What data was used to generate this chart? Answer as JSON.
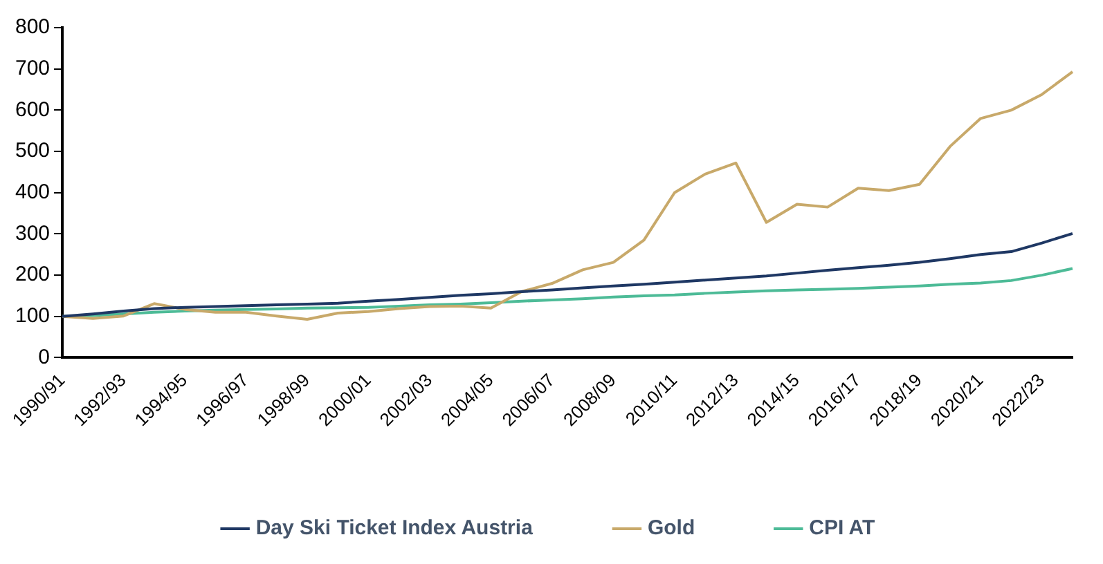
{
  "chart_data": {
    "type": "line",
    "categories": [
      "1990/91",
      null,
      "1992/93",
      null,
      "1994/95",
      null,
      "1996/97",
      null,
      "1998/99",
      null,
      "2000/01",
      null,
      "2002/03",
      null,
      "2004/05",
      null,
      "2006/07",
      null,
      "2008/09",
      null,
      "2010/11",
      null,
      "2012/13",
      null,
      "2014/15",
      null,
      "2016/17",
      null,
      "2018/19",
      null,
      "2020/21",
      null,
      "2022/23",
      null
    ],
    "series": [
      {
        "name": "Day Ski Ticket Index Austria",
        "color": "#1f3864",
        "values": [
          100,
          106,
          113,
          119,
          122,
          124,
          126,
          128,
          130,
          132,
          137,
          141,
          146,
          151,
          155,
          160,
          164,
          169,
          174,
          178,
          183,
          188,
          193,
          198,
          205,
          212,
          218,
          224,
          231,
          240,
          250,
          257,
          278,
          301
        ]
      },
      {
        "name": "Gold",
        "color": "#c8a96a",
        "values": [
          100,
          95,
          101,
          131,
          117,
          110,
          110,
          101,
          93,
          108,
          112,
          119,
          124,
          125,
          120,
          160,
          180,
          213,
          231,
          285,
          400,
          445,
          472,
          328,
          372,
          365,
          411,
          405,
          420,
          512,
          580,
          600,
          638,
          693
        ]
      },
      {
        "name": "CPI AT",
        "color": "#4dbb97",
        "values": [
          100,
          102,
          106,
          110,
          113,
          115,
          117,
          118,
          120,
          121,
          122,
          125,
          128,
          130,
          133,
          137,
          140,
          143,
          147,
          150,
          152,
          156,
          159,
          162,
          164,
          166,
          168,
          171,
          174,
          178,
          181,
          187,
          200,
          216
        ]
      }
    ],
    "ylim": [
      0,
      800
    ],
    "yticks": [
      0,
      100,
      200,
      300,
      400,
      500,
      600,
      700,
      800
    ],
    "grid": false,
    "legend": "bottom",
    "marker": "none",
    "line_style": "solid"
  }
}
